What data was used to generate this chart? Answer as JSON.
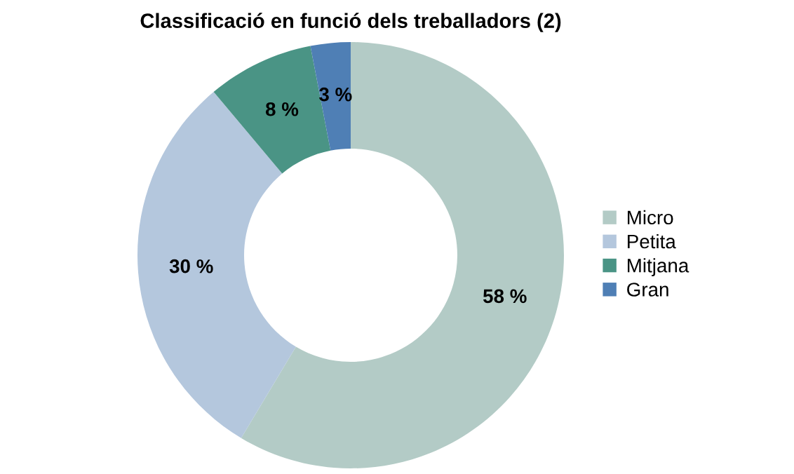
{
  "chart_data": {
    "type": "donut",
    "title": "Classificació en funció dels treballadors (2)",
    "categories": [
      "Micro",
      "Petita",
      "Mitjana",
      "Gran"
    ],
    "values": [
      58,
      30,
      8,
      3
    ],
    "value_labels": [
      "58 %",
      "30 %",
      "8 %",
      "3 %"
    ],
    "colors": [
      "#b3cbc6",
      "#b4c7dd",
      "#4a9485",
      "#4f7fb5"
    ],
    "legend": "right"
  }
}
